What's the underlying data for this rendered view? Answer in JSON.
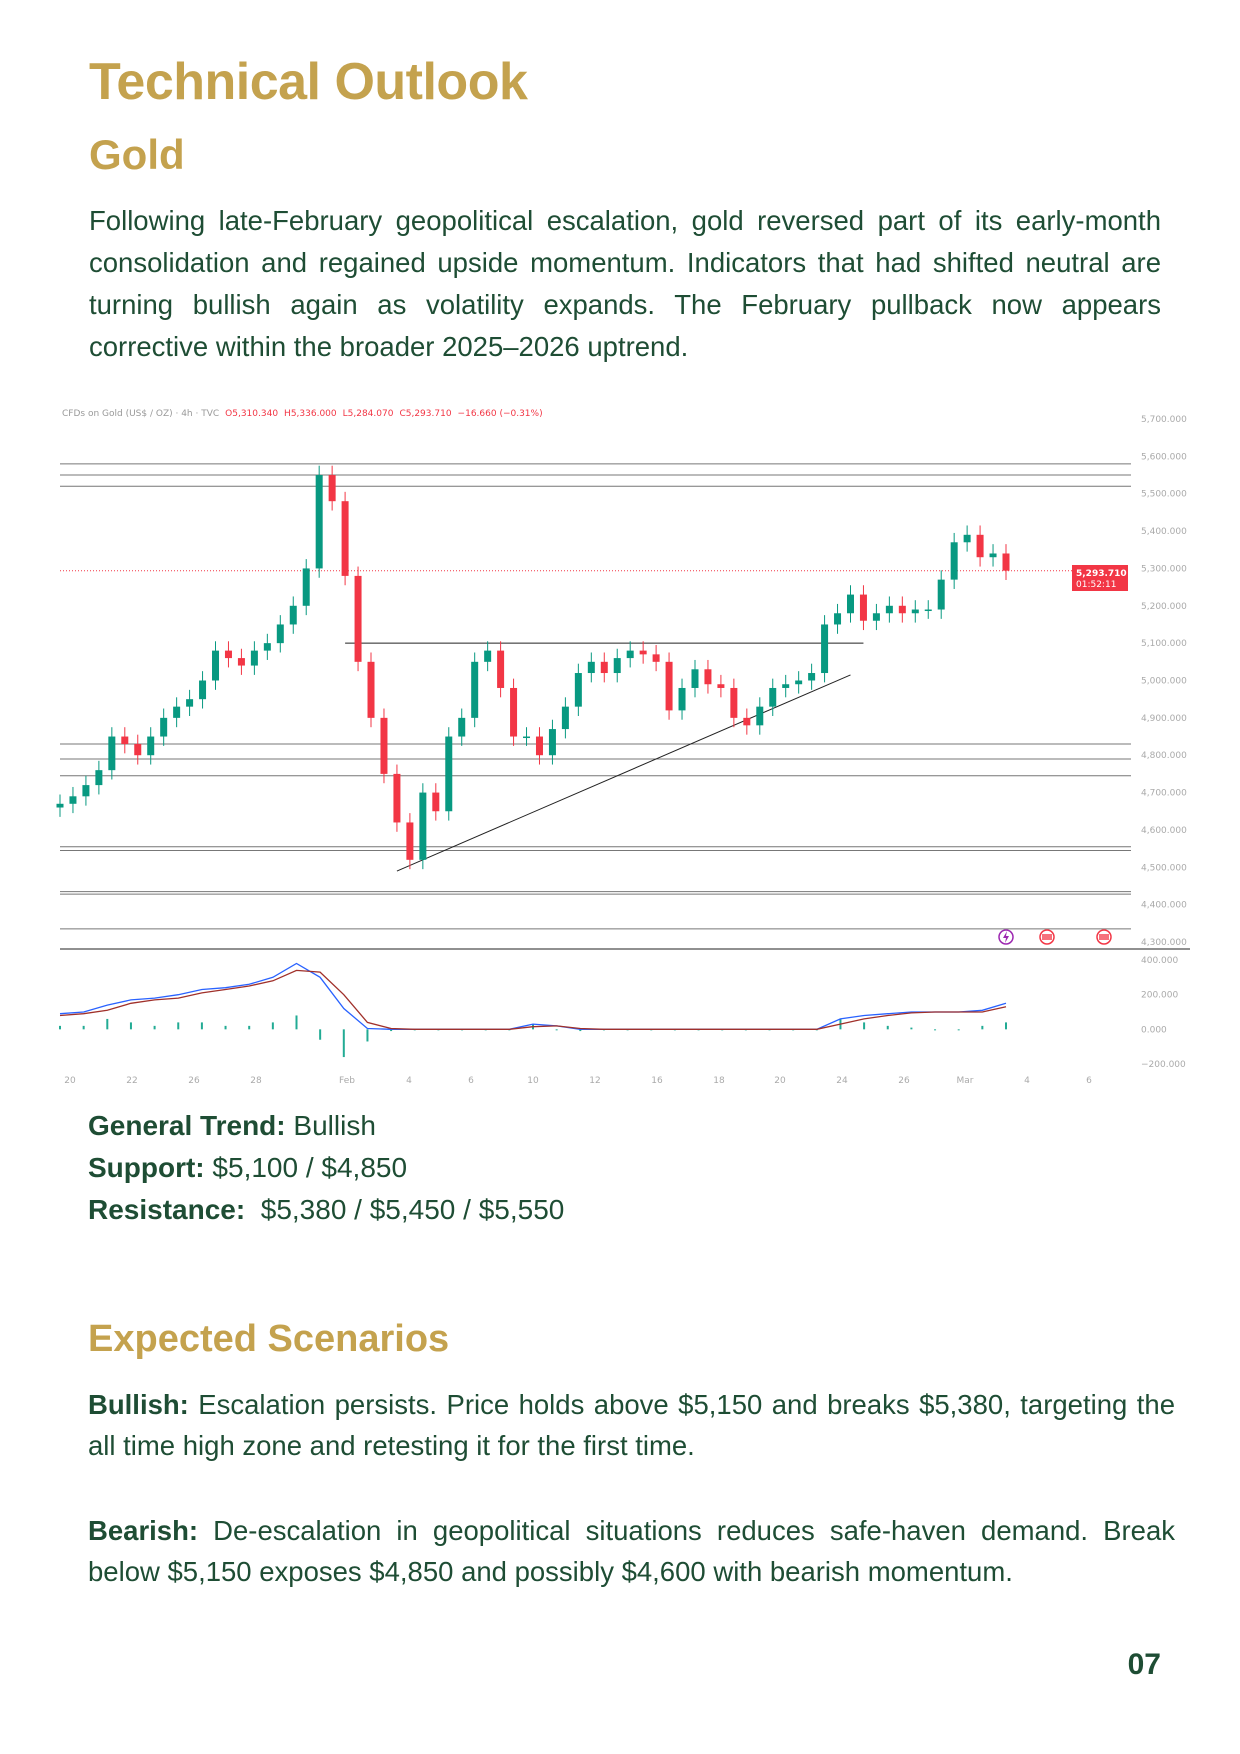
{
  "page": {
    "title": "Technical Outlook",
    "subtitle": "Gold",
    "intro": "Following late-February geopolitical escalation, gold reversed part of its early-month consolidation and regained upside momentum. Indicators that had shifted neutral are turning bullish again as volatility expands. The February pullback now appears corrective within the broader 2025–2026 uptrend.",
    "levels": {
      "trend_label": "General Trend:",
      "trend_value": " Bullish",
      "support_label": "Support:",
      "support_value": " $5,100 / $4,850",
      "resistance_label": "Resistance:",
      "resistance_value": "  $5,380 / $5,450 / $5,550"
    },
    "scenarios_title": "Expected Scenarios",
    "bullish_label": "Bullish:",
    "bullish_text": " Escalation persists. Price holds above $5,150 and breaks $5,380, targeting the all time high zone and retesting it for the first time.",
    "bearish_label": "Bearish:",
    "bearish_text": " De-escalation in geopolitical situations reduces safe-haven demand. Break below $5,150 exposes $4,850 and possibly $4,600 with bearish momentum.",
    "page_number": "07"
  },
  "colors": {
    "gold": "#C4A24E",
    "green_text": "#1E4D34",
    "up": "#089981",
    "down": "#F23645",
    "macd": "#2962FF",
    "signal": "#A0302A",
    "hist": "#22AB94"
  },
  "chart_data": {
    "type": "candlestick",
    "header": {
      "symbol": "CFDs on Gold (US$ / OZ) · 4h · TVC",
      "open": "O5,310.340",
      "high": "H5,336.000",
      "low": "L5,284.070",
      "close": "C5,293.710",
      "change": "−16.660 (−0.31%)"
    },
    "price_axis": {
      "range": [
        4300,
        5700
      ],
      "ticks": [
        "5,700.000",
        "5,600.000",
        "5,500.000",
        "5,400.000",
        "5,300.000",
        "5,200.000",
        "5,100.000",
        "5,000.000",
        "4,900.000",
        "4,800.000",
        "4,700.000",
        "4,600.000",
        "4,500.000",
        "4,400.000",
        "4,300.000"
      ]
    },
    "last_price_tag": {
      "price": "5,293.710",
      "countdown": "01:52:11"
    },
    "date_ticks": [
      "20",
      "22",
      "26",
      "28",
      "Feb",
      "4",
      "6",
      "10",
      "12",
      "16",
      "18",
      "20",
      "24",
      "26",
      "Mar",
      "4",
      "6"
    ],
    "closes": [
      4670,
      4690,
      4720,
      4760,
      4850,
      4830,
      4800,
      4850,
      4900,
      4930,
      4950,
      5000,
      5080,
      5060,
      5040,
      5080,
      5100,
      5150,
      5200,
      5300,
      5550,
      5480,
      5280,
      5050,
      4900,
      4750,
      4620,
      4520,
      4700,
      4650,
      4850,
      4900,
      5050,
      5080,
      4980,
      4850,
      4850,
      4800,
      4870,
      4930,
      5020,
      5050,
      5020,
      5060,
      5080,
      5070,
      5050,
      4920,
      4980,
      5030,
      4990,
      4980,
      4900,
      4880,
      4930,
      4980,
      4990,
      5000,
      5020,
      5150,
      5180,
      5230,
      5160,
      5180,
      5200,
      5180,
      5190,
      5190,
      5270,
      5370,
      5390,
      5330,
      5340,
      5294
    ],
    "horizontal_levels": [
      5580,
      5550,
      5520,
      4830,
      4790,
      4745,
      4555,
      4545,
      4435,
      4428,
      4335
    ],
    "resistance_segment": 5100,
    "trendline": {
      "from": 4490,
      "to": 5015
    },
    "macd_axis": {
      "range": [
        -200,
        400
      ],
      "ticks": [
        "400.000",
        "200.000",
        "0.000",
        "−200.000"
      ]
    },
    "macd": [
      90,
      100,
      140,
      170,
      180,
      200,
      230,
      240,
      260,
      300,
      380,
      300,
      120,
      5,
      0,
      0,
      0,
      0,
      0,
      0,
      30,
      20,
      0,
      0,
      0,
      0,
      0,
      0,
      0,
      0,
      0,
      0,
      0,
      60,
      80,
      90,
      100,
      100,
      100,
      110,
      150
    ],
    "signal": [
      80,
      90,
      110,
      150,
      170,
      180,
      210,
      230,
      250,
      280,
      340,
      330,
      200,
      40,
      5,
      0,
      0,
      0,
      0,
      0,
      15,
      20,
      5,
      0,
      0,
      0,
      0,
      0,
      0,
      0,
      0,
      0,
      0,
      30,
      60,
      80,
      95,
      100,
      100,
      100,
      130
    ],
    "event_icons": [
      "lightning-icon",
      "us-flag-icon",
      "us-flag-icon"
    ]
  }
}
